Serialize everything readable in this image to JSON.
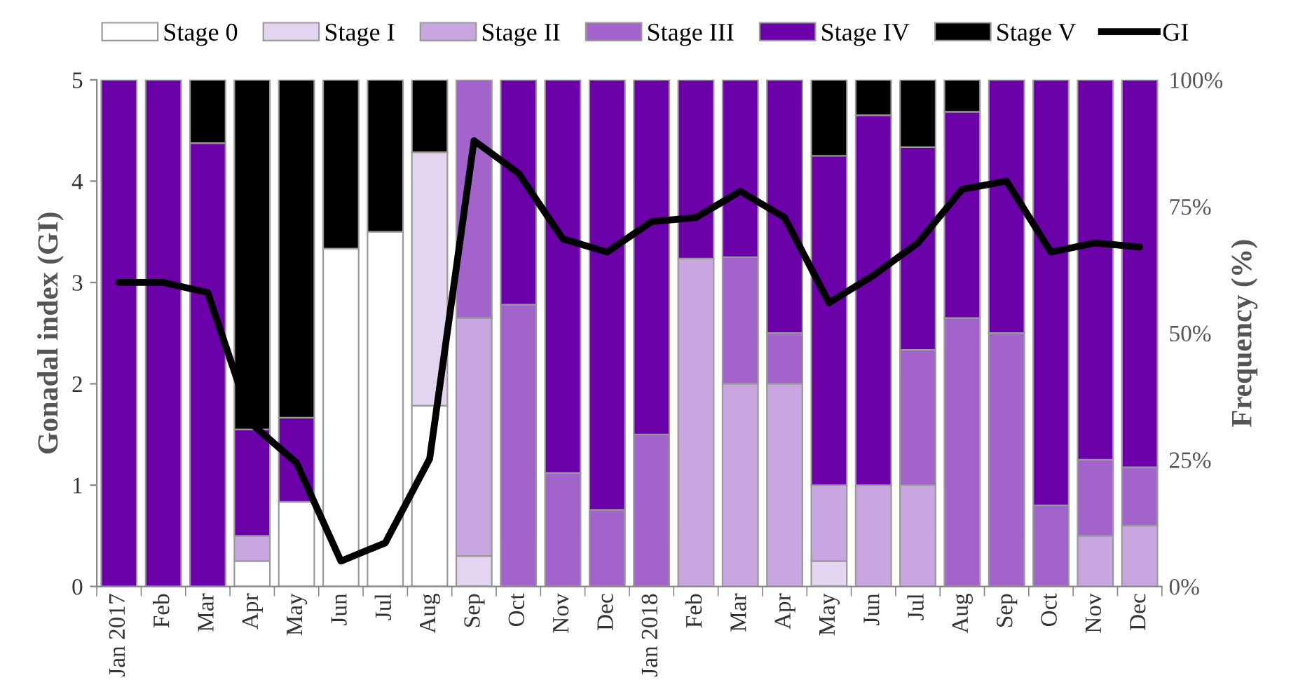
{
  "chart_data": {
    "type": "bar",
    "stacked": true,
    "ylabel": "Gonadal index (GI)",
    "y2label": "Frequency (%)",
    "categories": [
      "Jan 2017",
      "Feb",
      "Mar",
      "Apr",
      "May",
      "Jun",
      "Jul",
      "Aug",
      "Sep",
      "Oct",
      "Nov",
      "Dec",
      "Jan 2018",
      "Feb",
      "Mar",
      "Apr",
      "May",
      "Jun",
      "Jul",
      "Aug",
      "Sep",
      "Oct",
      "Nov",
      "Dec"
    ],
    "series": [
      {
        "name": "Stage 0",
        "color": "#ffffff",
        "axis": "y2",
        "values": [
          null,
          null,
          null,
          5,
          16.7,
          66.7,
          70,
          35.7,
          null,
          null,
          null,
          null,
          null,
          null,
          null,
          null,
          null,
          null,
          null,
          null,
          null,
          null,
          null,
          null
        ]
      },
      {
        "name": "Stage I",
        "color": "#e3d4ef",
        "axis": "y2",
        "values": [
          null,
          null,
          null,
          null,
          null,
          null,
          null,
          50,
          6,
          null,
          null,
          null,
          null,
          null,
          null,
          null,
          5,
          null,
          null,
          null,
          null,
          null,
          null,
          null
        ]
      },
      {
        "name": "Stage II",
        "color": "#c8a6e0",
        "axis": "y2",
        "values": [
          null,
          null,
          null,
          5,
          null,
          null,
          null,
          null,
          47,
          null,
          null,
          null,
          null,
          64.7,
          40,
          40,
          15,
          20,
          20,
          null,
          null,
          null,
          10,
          12
        ]
      },
      {
        "name": "Stage III",
        "color": "#a263cb",
        "axis": "y2",
        "values": [
          null,
          null,
          null,
          null,
          null,
          null,
          null,
          null,
          47,
          55.6,
          22.4,
          15.1,
          30,
          null,
          25,
          10,
          null,
          null,
          26.7,
          53,
          50,
          16,
          15,
          11.5
        ]
      },
      {
        "name": "Stage IV",
        "color": "#6b00a8",
        "axis": "y2",
        "values": [
          100,
          100,
          87.5,
          21,
          16.6,
          null,
          null,
          null,
          null,
          44.4,
          77.6,
          84.9,
          70,
          35.3,
          35,
          50,
          65,
          73,
          40,
          40.7,
          50,
          84,
          75,
          76.5
        ]
      },
      {
        "name": "Stage V",
        "color": "#000000",
        "axis": "y2",
        "values": [
          null,
          null,
          12.5,
          69,
          66.7,
          33.3,
          30,
          14.3,
          null,
          null,
          null,
          null,
          null,
          null,
          null,
          null,
          15,
          7,
          13.3,
          6.3,
          null,
          null,
          null,
          null
        ]
      },
      {
        "name": "GI",
        "type": "line",
        "color": "#000000",
        "axis": "y",
        "values": [
          3.0,
          3.0,
          2.9,
          1.6,
          1.22,
          0.25,
          0.43,
          1.26,
          4.4,
          4.08,
          3.43,
          3.3,
          3.6,
          3.64,
          3.9,
          3.64,
          2.8,
          3.07,
          3.39,
          3.92,
          4.0,
          3.3,
          3.39,
          3.35
        ]
      }
    ],
    "ylim": [
      0,
      5
    ],
    "yticks": [
      0,
      1,
      2,
      3,
      4,
      5
    ],
    "y2lim": [
      0,
      100
    ],
    "y2ticks": [
      {
        "value": 0,
        "label": "0%"
      },
      {
        "value": 25,
        "label": "25%"
      },
      {
        "value": 50,
        "label": "50%"
      },
      {
        "value": 75,
        "label": "75%"
      },
      {
        "value": 100,
        "label": "100%"
      }
    ],
    "legend": "top",
    "grid": false,
    "marker": "none",
    "line_style": "solid"
  }
}
